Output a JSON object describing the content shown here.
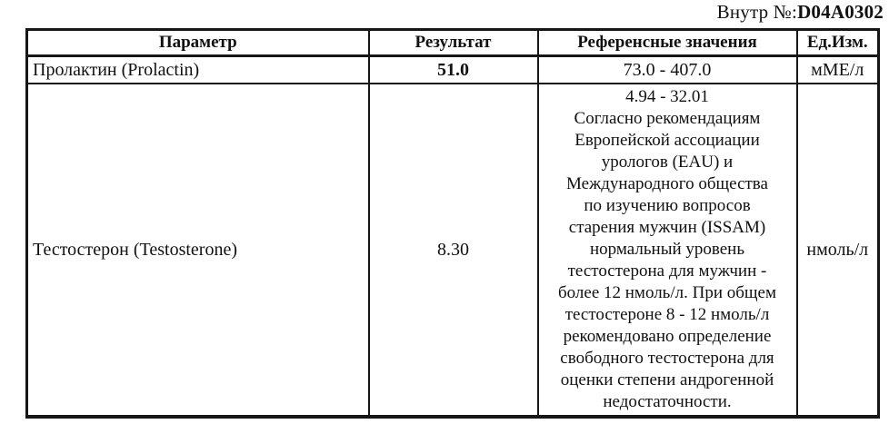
{
  "page": {
    "doc_number_label": "Внутр №:",
    "doc_number_value": "D04A0302"
  },
  "table": {
    "headers": [
      "Параметр",
      "Результат",
      "Референсные значения",
      "Ед.Изм."
    ],
    "rows": [
      {
        "parameter": "Пролактин (Prolactin)",
        "result": "51.0",
        "reference": "73.0 - 407.0",
        "unit": "мМЕ/л"
      },
      {
        "parameter": "Тестостерон (Testosterone)",
        "result": "8.30",
        "reference": "4.94 - 32.01\nСогласно рекомендациям\nЕвропейской ассоциации\nурологов (EAU) и\nМеждународного общества\nпо изучению вопросов\nстарения мужчин (ISSAM)\nнормальный уровень\nтестостерона для мужчин -\nболее 12 нмоль/л. При общем\nтестостероне 8 - 12 нмоль/л\nрекомендовано определение\nсвободного тестостерона для\nоценки степени андрогенной\nнедостаточности.",
        "unit": "нмоль/л"
      }
    ]
  },
  "colors": {
    "border": "#161616",
    "text": "#111111",
    "background": "#ffffff"
  }
}
